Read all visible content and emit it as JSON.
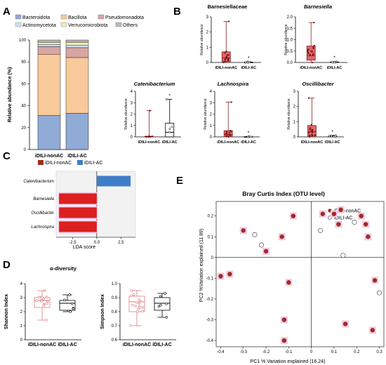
{
  "panel_labels": {
    "A": "A",
    "B": "B",
    "C": "C",
    "D": "D",
    "E": "E"
  },
  "colors": {
    "bacteroidota": "#8fabd6",
    "bacillota": "#f8c99a",
    "pseudomonadota": "#d8a5a5",
    "actinomycetota": "#cfe0f3",
    "verrucomicrobiota": "#f3ecbc",
    "others": "#b9b9b9",
    "nonac": "#a22b1c",
    "nonac_box": "#e0646a",
    "ac": "#3f7ec8",
    "lda_bar": "#dc1f1f",
    "highlight": "#f3c9e8"
  },
  "chart_data": [
    {
      "id": "A",
      "type": "bar",
      "stacked": true,
      "ylabel": "Relative abundance (%)",
      "ylim": [
        0,
        100
      ],
      "yticks": [
        0,
        20,
        40,
        60,
        80,
        100
      ],
      "categories": [
        "iDILI-nonAC",
        "iDILI-AC"
      ],
      "series": [
        {
          "name": "Bacteroidota",
          "values": [
            31,
            33
          ]
        },
        {
          "name": "Bacillota",
          "values": [
            56,
            51
          ]
        },
        {
          "name": "Pseudomonadota",
          "values": [
            7,
            9
          ]
        },
        {
          "name": "Actinomycetota",
          "values": [
            2,
            2
          ]
        },
        {
          "name": "Verrucomicrobiota",
          "values": [
            2,
            3
          ]
        },
        {
          "name": "Others",
          "values": [
            2,
            2
          ]
        }
      ]
    },
    {
      "id": "B1",
      "type": "box",
      "title": "Barnesiellaceae",
      "ylabel": "Relative abundance",
      "ylim": [
        0,
        3
      ],
      "yticks": [
        0,
        1,
        2,
        3
      ],
      "categories": [
        "iDILI-nonAC",
        "iDILI-AC"
      ],
      "boxes": [
        {
          "min": 0,
          "q1": 0.05,
          "median": 0.3,
          "q3": 0.7,
          "max": 2.7
        },
        {
          "min": 0,
          "q1": 0,
          "median": 0.01,
          "q3": 0.02,
          "max": 0.05
        }
      ],
      "annotation": "*"
    },
    {
      "id": "B2",
      "type": "box",
      "title": "Barnesiella",
      "ylabel": "Relative abundance",
      "ylim": [
        0,
        2
      ],
      "yticks": [
        0.0,
        0.5,
        1.0,
        1.5,
        2.0
      ],
      "categories": [
        "iDILI-nonAC",
        "iDILI-AC"
      ],
      "boxes": [
        {
          "min": 0,
          "q1": 0.1,
          "median": 0.3,
          "q3": 0.72,
          "max": 1.75
        },
        {
          "min": 0,
          "q1": 0,
          "median": 0.01,
          "q3": 0.02,
          "max": 0.04
        }
      ],
      "annotation": "*"
    },
    {
      "id": "B3",
      "type": "box",
      "title": "Catenibacterium",
      "ylabel": "Relative abundance",
      "ylim": [
        0,
        4
      ],
      "yticks": [
        0,
        1,
        2,
        3,
        4
      ],
      "categories": [
        "iDILI-nonAC",
        "iDILI-AC"
      ],
      "boxes": [
        {
          "min": 0,
          "q1": 0,
          "median": 0,
          "q3": 0.05,
          "max": 2.3
        },
        {
          "min": 0,
          "q1": 0,
          "median": 0.4,
          "q3": 1.2,
          "max": 3.3
        }
      ],
      "annotation": "*"
    },
    {
      "id": "B4",
      "type": "box",
      "title": "Lachnospira",
      "ylabel": "Relative abundance",
      "ylim": [
        0,
        4
      ],
      "yticks": [
        0,
        1,
        2,
        3,
        4
      ],
      "categories": [
        "iDILI-nonAC",
        "iDILI-AC"
      ],
      "boxes": [
        {
          "min": 0,
          "q1": 0,
          "median": 0.2,
          "q3": 0.55,
          "max": 3.05
        },
        {
          "min": 0,
          "q1": 0,
          "median": 0,
          "q3": 0.02,
          "max": 0.03
        }
      ],
      "annotation": "*"
    },
    {
      "id": "B5",
      "type": "box",
      "title": "Oscillibacter",
      "ylabel": "Relative abundance",
      "ylim": [
        0,
        3
      ],
      "yticks": [
        0,
        1,
        2,
        3
      ],
      "categories": [
        "iDILI-nonAC",
        "iDILI-AC"
      ],
      "boxes": [
        {
          "min": 0,
          "q1": 0.05,
          "median": 0.35,
          "q3": 0.75,
          "max": 2.55
        },
        {
          "min": 0,
          "q1": 0,
          "median": 0.03,
          "q3": 0.06,
          "max": 0.1
        }
      ],
      "annotation": "*"
    },
    {
      "id": "C",
      "type": "bar",
      "orientation": "horizontal",
      "xlabel": "LDA score",
      "xlim": [
        -4.2,
        4
      ],
      "xticks": [
        -2.5,
        0.0,
        2.5
      ],
      "legend": [
        "iDILI-nonAC",
        "iDILI-AC"
      ],
      "categories": [
        "Catenibacterium",
        "Barnesiella",
        "Oscillibacter",
        "Lachnospira"
      ],
      "values": [
        3.5,
        -3.9,
        -3.9,
        -3.9
      ],
      "groups": [
        "iDILI-AC",
        "iDILI-nonAC",
        "iDILI-nonAC",
        "iDILI-nonAC"
      ]
    },
    {
      "id": "D1",
      "type": "box",
      "title": "α-diversity",
      "ylabel": "Shannon Index",
      "ylim": [
        0,
        4
      ],
      "yticks": [
        0,
        1,
        2,
        3,
        4
      ],
      "categories": [
        "iDILI-nonAC",
        "iDILI-AC"
      ],
      "boxes": [
        {
          "min": 1.4,
          "q1": 2.3,
          "median": 2.8,
          "q3": 3.0,
          "max": 3.5
        },
        {
          "min": 2.0,
          "q1": 2.1,
          "median": 2.6,
          "q3": 2.8,
          "max": 3.2
        }
      ]
    },
    {
      "id": "D2",
      "type": "box",
      "ylabel": "Simpson Index",
      "ylim": [
        0.6,
        1.0
      ],
      "yticks": [
        0.6,
        0.7,
        0.8,
        0.9,
        1.0
      ],
      "categories": [
        "iDILI-nonAC",
        "iDILI-AC"
      ],
      "boxes": [
        {
          "min": 0.7,
          "q1": 0.8,
          "median": 0.87,
          "q3": 0.91,
          "max": 0.95
        },
        {
          "min": 0.76,
          "q1": 0.81,
          "median": 0.86,
          "q3": 0.9,
          "max": 0.93
        }
      ]
    },
    {
      "id": "E",
      "type": "scatter",
      "title": "Bray Curtis Index (OTU level)",
      "xlabel": "PC1 % Variation explained (16.24)",
      "ylabel": "PC2 %Variation explained (11.89)",
      "xlim": [
        -0.42,
        0.32
      ],
      "ylim": [
        -0.43,
        0.27
      ],
      "xticks": [
        -0.4,
        -0.3,
        -0.2,
        -0.1,
        0,
        0.1,
        0.2,
        0.3
      ],
      "yticks": [
        -0.4,
        -0.3,
        -0.2,
        -0.1,
        0,
        0.1,
        0.2
      ],
      "series": [
        {
          "name": "iDILI-nonAC",
          "x": [
            -0.4,
            -0.36,
            -0.3,
            -0.2,
            -0.13,
            -0.12,
            -0.12,
            -0.1,
            -0.08,
            0.05,
            0.1,
            0.12,
            0.13,
            0.15,
            0.22,
            0.24,
            0.25,
            0.27,
            0.28
          ],
          "y": [
            -0.09,
            -0.08,
            0.13,
            0.03,
            0.1,
            -0.3,
            -0.4,
            -0.12,
            0.2,
            0.21,
            0.21,
            0.16,
            0.23,
            -0.32,
            0.2,
            0.16,
            0.1,
            -0.35,
            -0.11
          ]
        },
        {
          "name": "iDILI-AC",
          "x": [
            -0.25,
            -0.22,
            0.04,
            0.14,
            0.19,
            0.3
          ],
          "y": [
            0.11,
            0.06,
            0.13,
            0.01,
            0.17,
            -0.17
          ]
        }
      ]
    }
  ]
}
